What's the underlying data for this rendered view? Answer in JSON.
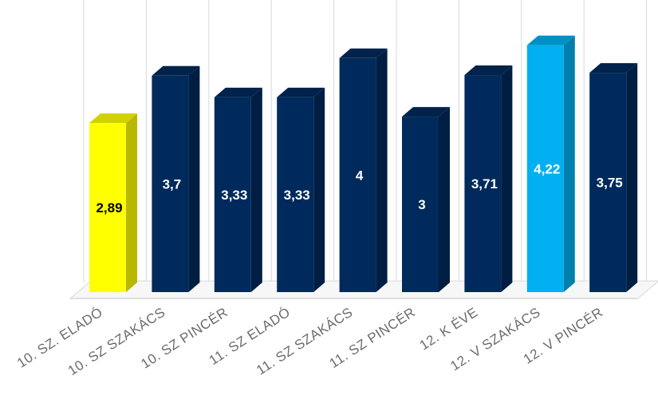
{
  "chart_data": {
    "type": "bar",
    "categories": [
      "10. SZ. ELADÓ",
      "10. SZ SZAKÁCS",
      "10. SZ PINCÉR",
      "11. SZ ELADÓ",
      "11. SZ SZAKÁCS",
      "11. SZ PINCÉR",
      "12. K ÉVE",
      "12. V SZAKÁCS",
      "12. V PINCÉR"
    ],
    "values": [
      2.89,
      3.7,
      3.33,
      3.33,
      4,
      3,
      3.71,
      4.22,
      3.75
    ],
    "value_labels": [
      "2,89",
      "3,7",
      "3,33",
      "3,33",
      "4",
      "3",
      "3,71",
      "4,22",
      "3,75"
    ],
    "bar_colors": [
      "#ffff00",
      "#002a5c",
      "#002a5c",
      "#002a5c",
      "#002a5c",
      "#002a5c",
      "#002a5c",
      "#00b0f0",
      "#002a5c"
    ],
    "label_colors": [
      "#000000",
      "#ffffff",
      "#ffffff",
      "#ffffff",
      "#ffffff",
      "#ffffff",
      "#ffffff",
      "#ffffff",
      "#ffffff"
    ],
    "ylim": [
      0,
      4.3
    ],
    "grid": true,
    "style": "3d-columns",
    "title": "",
    "xlabel": "",
    "ylabel": ""
  }
}
